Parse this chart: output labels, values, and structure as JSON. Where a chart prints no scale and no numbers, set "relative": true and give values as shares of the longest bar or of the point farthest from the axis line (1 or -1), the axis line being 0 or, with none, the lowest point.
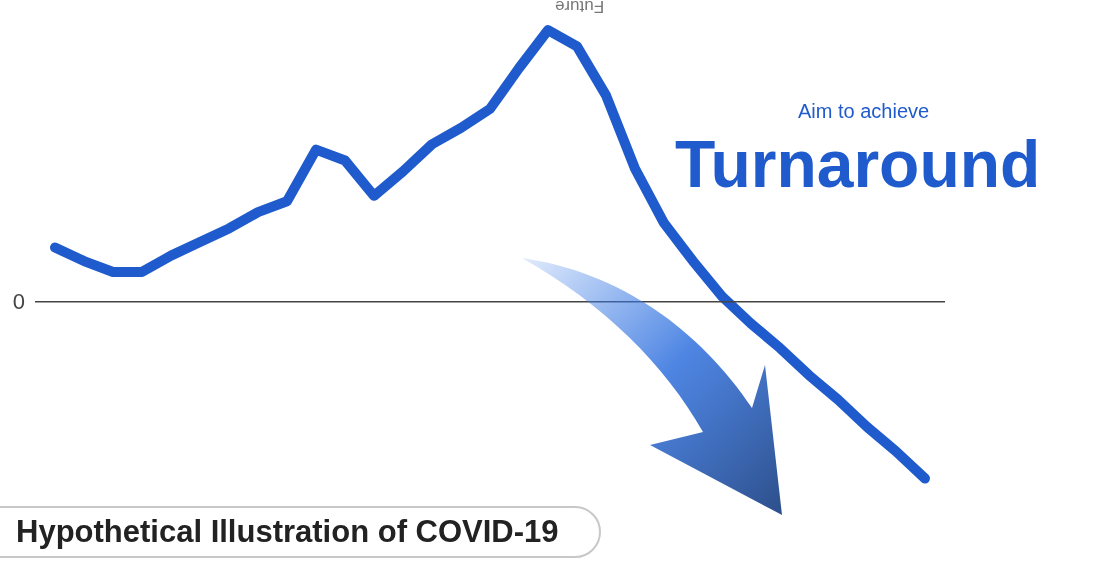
{
  "chart_data": {
    "type": "line",
    "title": "Hypothetical Illustration of COVID-19",
    "relative": true,
    "categories": [
      null,
      null,
      null,
      null,
      null,
      null,
      null,
      null,
      null,
      null,
      null,
      null,
      null,
      null,
      null,
      null,
      null,
      null,
      null,
      null,
      null,
      null,
      null,
      null,
      null,
      null,
      null,
      null,
      null,
      null,
      null
    ],
    "series": [
      {
        "color": "#1f5bcc",
        "values": [
          0.2,
          0.15,
          0.11,
          0.11,
          0.17,
          0.22,
          0.27,
          0.33,
          0.37,
          0.56,
          0.52,
          0.39,
          0.48,
          0.58,
          0.64,
          0.71,
          0.86,
          1,
          0.94,
          0.76,
          0.49,
          0.29,
          0.15,
          0.02,
          -0.08,
          -0.17,
          -0.27,
          -0.36,
          -0.46,
          -0.55,
          -0.65
        ]
      }
    ],
    "ref_lines": [
      {
        "axis": "y",
        "value": 0,
        "label": "0",
        "color": "#444444"
      }
    ],
    "annotations": [
      "Future",
      "Aim to achieve",
      "Turnaround"
    ],
    "marker": "none",
    "line_style": "solid"
  }
}
